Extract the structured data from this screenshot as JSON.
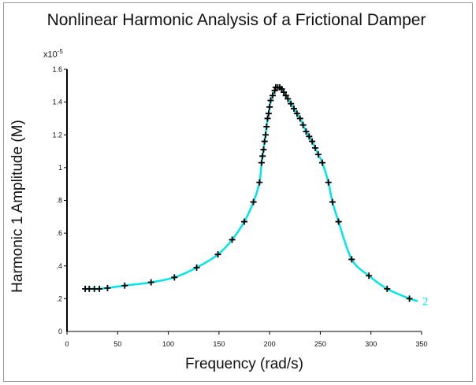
{
  "chart_data": {
    "type": "line",
    "title": "Nonlinear Harmonic Analysis of a Frictional Damper",
    "xlabel": "Frequency (rad/s)",
    "ylabel": "Harmonic 1 Amplitude (M)",
    "y_multiplier": "x10",
    "y_multiplier_exp": "-5",
    "xlim": [
      0,
      350
    ],
    "ylim": [
      0,
      1.6
    ],
    "x_ticks": [
      0,
      50,
      100,
      150,
      200,
      250,
      300,
      350
    ],
    "x_tick_labels": [
      "0",
      "50",
      "100",
      "150",
      "200",
      "250",
      "300",
      "350"
    ],
    "y_ticks": [
      0.2,
      0.4,
      0.6,
      0.8,
      1.0,
      1.2,
      1.4,
      1.6
    ],
    "y_tick_labels": [
      ".2",
      ".4",
      ".6",
      ".8",
      "1",
      "1.2",
      "1.4",
      "1.6"
    ],
    "grid": false,
    "series": [
      {
        "name": "2",
        "color": "#00e5e5",
        "marker": "plus",
        "marker_color": "#000000",
        "x": [
          18,
          22,
          27,
          32,
          40,
          57,
          83,
          106,
          128,
          149,
          163,
          175,
          184,
          190,
          192,
          193,
          194,
          195,
          196,
          197,
          198,
          199,
          200,
          201,
          203,
          205,
          206,
          208,
          210,
          212,
          214,
          216,
          218,
          221,
          224,
          227,
          230,
          233,
          236,
          239,
          242,
          245,
          248,
          252,
          258,
          262,
          268,
          281,
          298,
          316,
          338
        ],
        "y": [
          0.26,
          0.26,
          0.26,
          0.26,
          0.265,
          0.28,
          0.3,
          0.33,
          0.39,
          0.47,
          0.56,
          0.67,
          0.79,
          0.91,
          1.03,
          1.07,
          1.11,
          1.16,
          1.2,
          1.25,
          1.3,
          1.33,
          1.37,
          1.41,
          1.44,
          1.47,
          1.49,
          1.49,
          1.49,
          1.48,
          1.46,
          1.44,
          1.42,
          1.39,
          1.36,
          1.33,
          1.3,
          1.26,
          1.22,
          1.19,
          1.16,
          1.12,
          1.08,
          1.03,
          0.91,
          0.79,
          0.67,
          0.44,
          0.34,
          0.26,
          0.2
        ]
      }
    ]
  }
}
